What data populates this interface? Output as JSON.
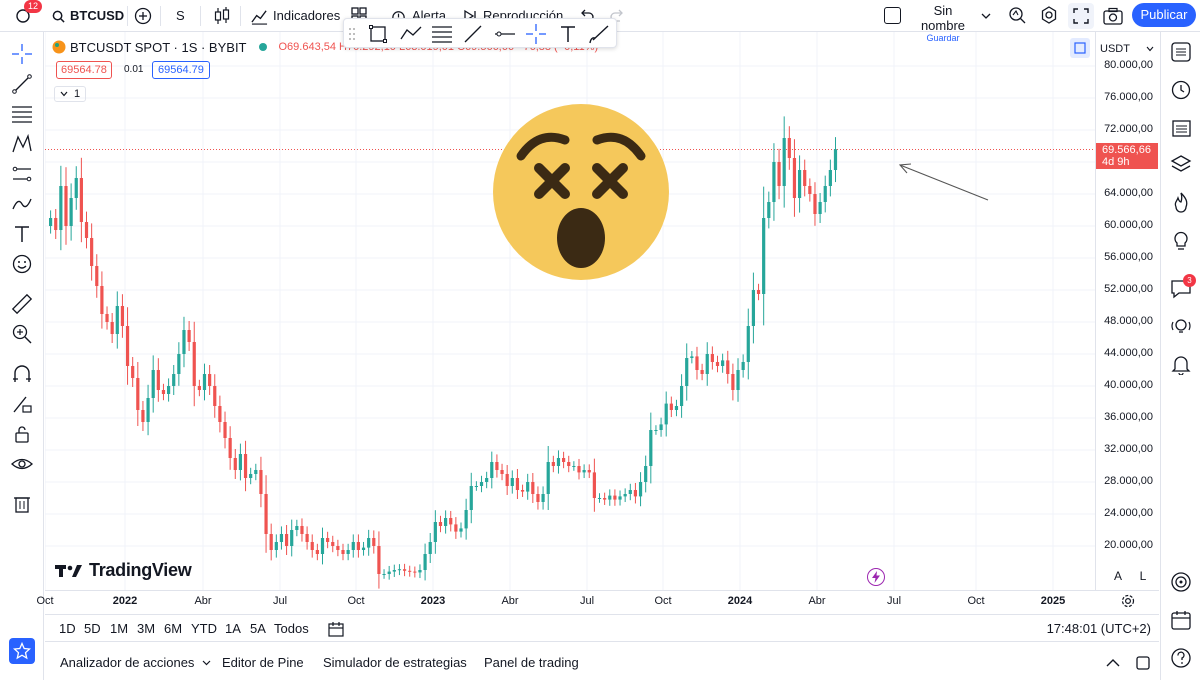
{
  "header": {
    "notif_count": "12",
    "symbol": "BTCUSD",
    "interval": "S",
    "indicators_label": "Indicadores",
    "alert_label": "Alerta",
    "replay_label": "Reproducción",
    "layout_name": "Sin nombre",
    "layout_sub": "Guardar",
    "publish_label": "Publicar"
  },
  "legend": {
    "title": "BTCUSDT SPOT · 1S · BYBIT",
    "ohlc": "O69.643,54  H70.292,10  L63.019,01  C69.566,66  −76,88 (−0,11%)",
    "bid": "69564.78",
    "spread": "0.01",
    "ask": "69564.79",
    "collapse": "1"
  },
  "price_scale": {
    "currency": "USDT",
    "labels": [
      "80.000,00",
      "76.000,00",
      "72.000,00",
      "68.000,00",
      "64.000,00",
      "60.000,00",
      "56.000,00",
      "52.000,00",
      "48.000,00",
      "44.000,00",
      "40.000,00",
      "36.000,00",
      "32.000,00",
      "28.000,00",
      "24.000,00",
      "20.000,00"
    ],
    "current_price": "69.566,66",
    "countdown": "4d 9h"
  },
  "time_axis": {
    "labels": [
      "Oct",
      "2022",
      "Abr",
      "Jul",
      "Oct",
      "2023",
      "Abr",
      "Jul",
      "Oct",
      "2024",
      "Abr",
      "Jul",
      "Oct",
      "2025"
    ]
  },
  "chart_data": {
    "type": "candlestick",
    "ylim": [
      18000,
      82000
    ],
    "watermark": "TradingView",
    "colors": {
      "up": "#26a69a",
      "down": "#ef5350"
    },
    "weekly_close": [
      61000,
      59500,
      65000,
      60000,
      63500,
      66000,
      60500,
      58500,
      55000,
      52500,
      49000,
      48000,
      46500,
      50000,
      47500,
      42500,
      41000,
      37000,
      35500,
      38500,
      42000,
      39500,
      39000,
      40000,
      41500,
      44000,
      47000,
      45500,
      40000,
      39500,
      41500,
      40000,
      37500,
      35500,
      33500,
      31000,
      29500,
      31500,
      28500,
      29000,
      29500,
      26500,
      21500,
      19500,
      20500,
      21500,
      20000,
      22000,
      22500,
      21500,
      20500,
      19500,
      19000,
      21000,
      20500,
      20000,
      19500,
      19000,
      19500,
      20500,
      19500,
      19800,
      21000,
      20000,
      16500,
      16500,
      16800,
      17000,
      17100,
      16900,
      16800,
      16700,
      17000,
      19000,
      20500,
      23000,
      22500,
      23500,
      22700,
      21800,
      22200,
      24500,
      27500,
      27500,
      28000,
      28500,
      30500,
      29500,
      29000,
      27500,
      28500,
      27000,
      26800,
      28000,
      26500,
      25500,
      26500,
      30500,
      30000,
      31000,
      30500,
      30000,
      30000,
      29200,
      29500,
      29200,
      26000,
      26000,
      25800,
      26300,
      25800,
      26200,
      26500,
      27000,
      26200,
      28000,
      30000,
      34500,
      34500,
      35200,
      37800,
      37000,
      37500,
      40000,
      43500,
      43700,
      42000,
      41500,
      44000,
      43000,
      42500,
      43200,
      41500,
      39500,
      42000,
      43000,
      47500,
      52000,
      51500,
      61000,
      63000,
      68000,
      65000,
      71000,
      68500,
      63500,
      67000,
      65000,
      64000,
      61500,
      63000,
      65000,
      67000,
      69600
    ],
    "annotations": [
      "arrow pointing to last candle",
      "emoji overlay"
    ]
  },
  "range_bar": {
    "ranges": [
      "1D",
      "5D",
      "1M",
      "3M",
      "6M",
      "YTD",
      "1A",
      "5A",
      "Todos"
    ],
    "clock": "17:48:01 (UTC+2)",
    "auto_label": "A",
    "log_label": "L"
  },
  "bottom_tabs": [
    "Analizador de acciones",
    "Editor de Pine",
    "Simulador de estrategias",
    "Panel de trading"
  ],
  "rightbar": {
    "ideas_badge": "3"
  },
  "accent": "#2962ff"
}
